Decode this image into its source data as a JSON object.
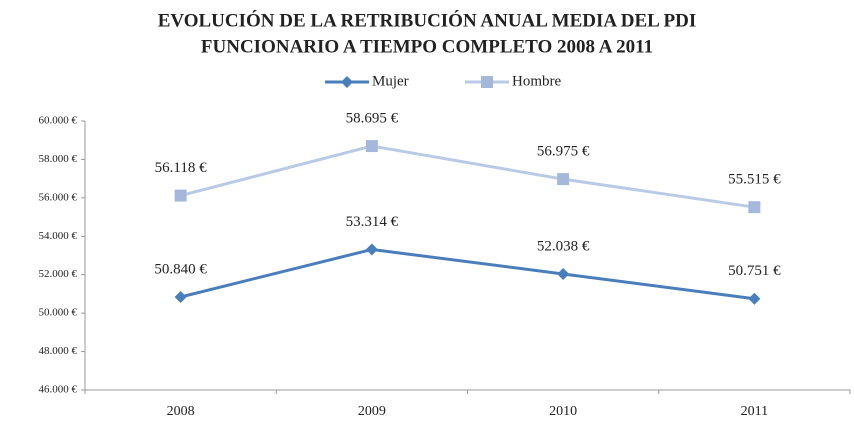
{
  "chart_data": {
    "type": "line",
    "title": [
      "EVOLUCIÓN DE LA RETRIBUCIÓN ANUAL MEDIA DEL PDI",
      "FUNCIONARIO A TIEMPO COMPLETO 2008 A 2011"
    ],
    "categories": [
      "2008",
      "2009",
      "2010",
      "2011"
    ],
    "series": [
      {
        "name": "Mujer",
        "color": "#4a7ebb",
        "marker": "diamond",
        "values": [
          50840,
          53314,
          52038,
          50751
        ],
        "value_labels": [
          "50.840 €",
          "53.314 €",
          "52.038 €",
          "50.751 €"
        ]
      },
      {
        "name": "Hombre",
        "color": "#b9cae6",
        "marker_color": "#a5b8dc",
        "marker": "square",
        "values": [
          56118,
          58695,
          56975,
          55515
        ],
        "value_labels": [
          "56.118 €",
          "58.695 €",
          "56.975 €",
          "55.515 €"
        ]
      }
    ],
    "ylim": [
      46000,
      60000
    ],
    "yticks": [
      {
        "value": 46000,
        "label": "46.000 €"
      },
      {
        "value": 48000,
        "label": "48.000 €"
      },
      {
        "value": 50000,
        "label": "50.000 €"
      },
      {
        "value": 52000,
        "label": "52.000 €"
      },
      {
        "value": 54000,
        "label": "54.000 €"
      },
      {
        "value": 56000,
        "label": "56.000 €"
      },
      {
        "value": 58000,
        "label": "58.000 €"
      },
      {
        "value": 60000,
        "label": "60.000 €"
      }
    ],
    "legend": "top",
    "grid": false
  }
}
